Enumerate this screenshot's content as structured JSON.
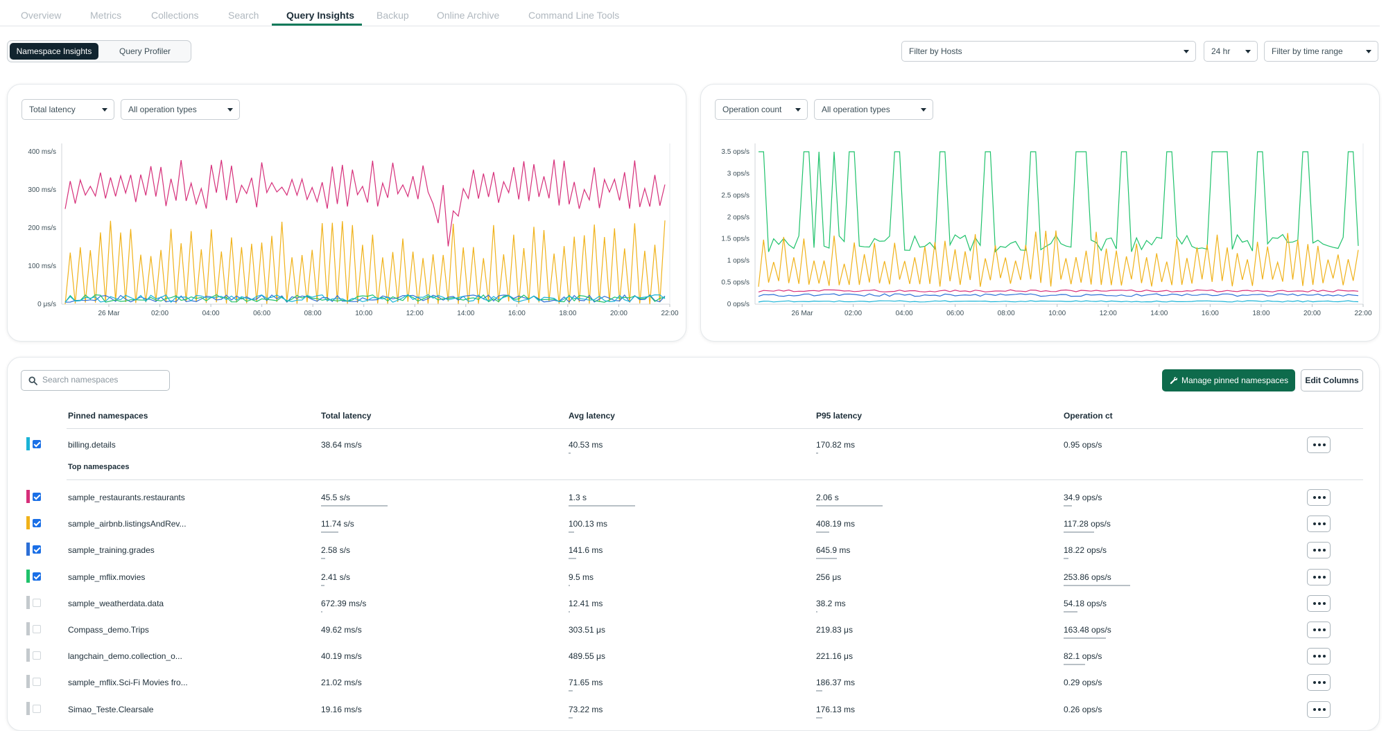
{
  "tabs": [
    "Overview",
    "Metrics",
    "Collections",
    "Search",
    "Query Insights",
    "Backup",
    "Online Archive",
    "Command Line Tools"
  ],
  "view_toggle": {
    "active": "Namespace Insights",
    "inactive": "Query Profiler"
  },
  "filters": {
    "hosts": "Filter by Hosts",
    "window": "24 hr",
    "time_range": "Filter by time range"
  },
  "left_panel": {
    "metric_select": "Total latency",
    "op_select": "All operation types",
    "chart": {
      "type": "line",
      "y_ticks": [
        "400 ms/s",
        "300 ms/s",
        "200 ms/s",
        "100 ms/s",
        "0 μs/s"
      ],
      "x_ticks": [
        "26 Mar",
        "02:00",
        "04:00",
        "06:00",
        "08:00",
        "10:00",
        "12:00",
        "14:00",
        "16:00",
        "18:00",
        "20:00",
        "22:00"
      ],
      "ylim": [
        0,
        400
      ],
      "unit": "ms/s",
      "series_colors": [
        "#d62f7a",
        "#f0b21a",
        "#2d6fd6",
        "#1fc26b",
        "#1ab3d6"
      ]
    }
  },
  "right_panel": {
    "metric_select": "Operation count",
    "op_select": "All operation types",
    "chart": {
      "type": "line",
      "y_ticks": [
        "3.5 ops/s",
        "3 ops/s",
        "2.5 ops/s",
        "2 ops/s",
        "1.5 ops/s",
        "1 ops/s",
        "0.5 ops/s",
        "0 ops/s"
      ],
      "x_ticks": [
        "26 Mar",
        "02:00",
        "04:00",
        "06:00",
        "08:00",
        "10:00",
        "12:00",
        "14:00",
        "16:00",
        "18:00",
        "20:00",
        "22:00"
      ],
      "ylim": [
        0,
        3.5
      ],
      "unit": "ops/s",
      "series_colors": [
        "#1fc26b",
        "#f0b21a",
        "#d62f7a",
        "#2d6fd6",
        "#1ab3d6"
      ]
    }
  },
  "table": {
    "search_placeholder": "Search namespaces",
    "manage_button": "Manage pinned namespaces",
    "edit_columns": "Edit Columns",
    "headers": [
      "Pinned namespaces",
      "Total latency",
      "Avg latency",
      "P95 latency",
      "Operation ct"
    ],
    "top_label": "Top namespaces",
    "pinned": [
      {
        "name": "billing.details",
        "total": "38.64 ms/s",
        "avg": "40.53 ms",
        "p95": "170.82 ms",
        "ops": "0.95 ops/s",
        "color": "#1ab3d6",
        "checked": true,
        "bars": [
          0,
          0.03,
          0.03,
          0
        ]
      }
    ],
    "top": [
      {
        "name": "sample_restaurants.restaurants",
        "total": "45.5 s/s",
        "avg": "1.3 s",
        "p95": "2.06 s",
        "ops": "34.9 ops/s",
        "color": "#d62f7a",
        "checked": true,
        "bars": [
          1,
          1,
          1,
          0.13
        ]
      },
      {
        "name": "sample_airbnb.listingsAndRev...",
        "total": "11.74 s/s",
        "avg": "100.13 ms",
        "p95": "408.19 ms",
        "ops": "117.28 ops/s",
        "color": "#f0b21a",
        "checked": true,
        "bars": [
          0.26,
          0.08,
          0.2,
          0.46
        ]
      },
      {
        "name": "sample_training.grades",
        "total": "2.58 s/s",
        "avg": "141.6 ms",
        "p95": "645.9 ms",
        "ops": "18.22 ops/s",
        "color": "#2d6fd6",
        "checked": true,
        "bars": [
          0.06,
          0.11,
          0.31,
          0.07
        ]
      },
      {
        "name": "sample_mflix.movies",
        "total": "2.41 s/s",
        "avg": "9.5 ms",
        "p95": "256 μs",
        "ops": "253.86 ops/s",
        "color": "#1fc26b",
        "checked": true,
        "bars": [
          0.05,
          0.01,
          0,
          1
        ]
      },
      {
        "name": "sample_weatherdata.data",
        "total": "672.39 ms/s",
        "avg": "12.41 ms",
        "p95": "38.2 ms",
        "ops": "54.18 ops/s",
        "color": "#c4c9cd",
        "checked": false,
        "bars": [
          0.01,
          0.01,
          0.02,
          0.21
        ]
      },
      {
        "name": "Compass_demo.Trips",
        "total": "49.62 ms/s",
        "avg": "303.51 μs",
        "p95": "219.83 μs",
        "ops": "163.48 ops/s",
        "color": "#c4c9cd",
        "checked": false,
        "bars": [
          0,
          0,
          0,
          0.64
        ]
      },
      {
        "name": "langchain_demo.collection_o...",
        "total": "40.19 ms/s",
        "avg": "489.55 μs",
        "p95": "221.16 μs",
        "ops": "82.1 ops/s",
        "color": "#c4c9cd",
        "checked": false,
        "bars": [
          0,
          0,
          0,
          0.32
        ]
      },
      {
        "name": "sample_mflix.Sci-Fi Movies fro...",
        "total": "21.02 ms/s",
        "avg": "71.65 ms",
        "p95": "186.37 ms",
        "ops": "0.29 ops/s",
        "color": "#c4c9cd",
        "checked": false,
        "bars": [
          0,
          0.06,
          0.09,
          0
        ]
      },
      {
        "name": "Simao_Teste.Clearsale",
        "total": "19.16 ms/s",
        "avg": "73.22 ms",
        "p95": "176.13 ms",
        "ops": "0.26 ops/s",
        "color": "#c4c9cd",
        "checked": false,
        "bars": [
          0,
          0.06,
          0.09,
          0
        ]
      }
    ]
  }
}
